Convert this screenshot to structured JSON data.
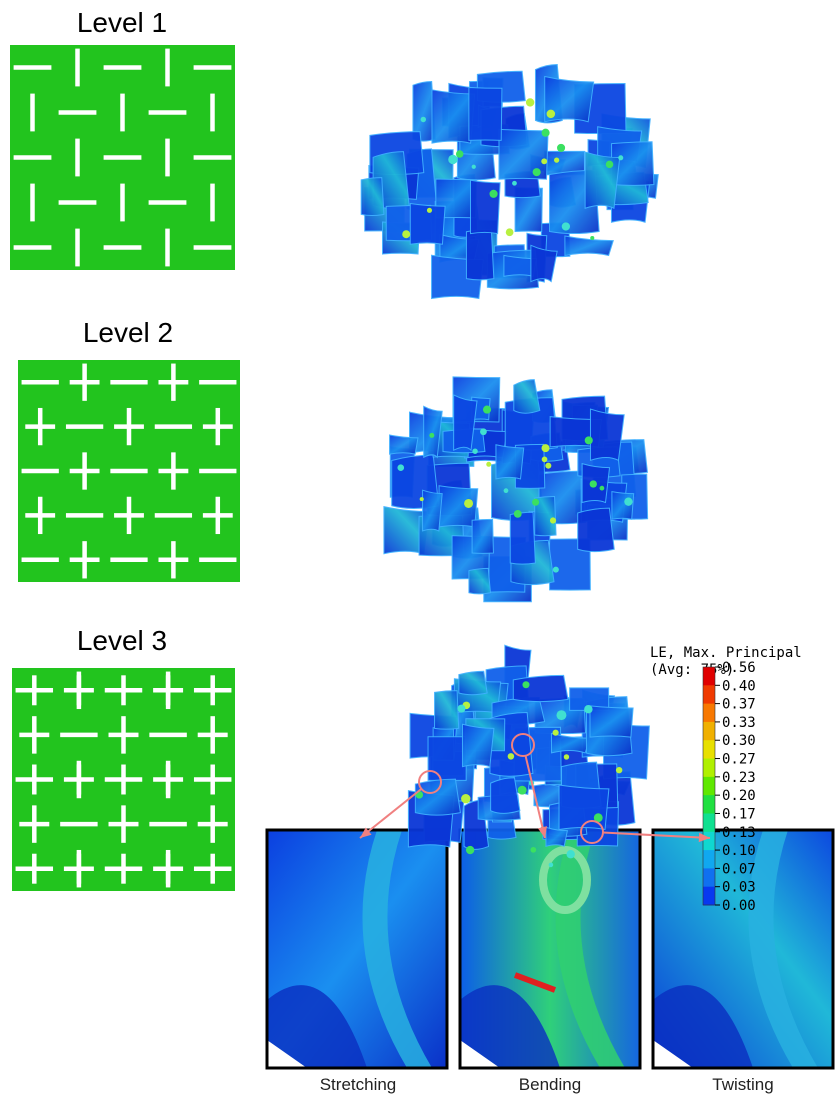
{
  "panels": [
    {
      "label": "Level 1"
    },
    {
      "label": "Level 2"
    },
    {
      "label": "Level 3"
    }
  ],
  "legend": {
    "title": "LE, Max. Principal",
    "subtitle": "(Avg: 75%)",
    "ticks": [
      "0.56",
      "0.40",
      "0.37",
      "0.33",
      "0.30",
      "0.27",
      "0.23",
      "0.20",
      "0.17",
      "0.13",
      "0.10",
      "0.07",
      "0.03",
      "0.00"
    ]
  },
  "insets": [
    {
      "caption": "Stretching"
    },
    {
      "caption": "Bending"
    },
    {
      "caption": "Twisting"
    }
  ]
}
